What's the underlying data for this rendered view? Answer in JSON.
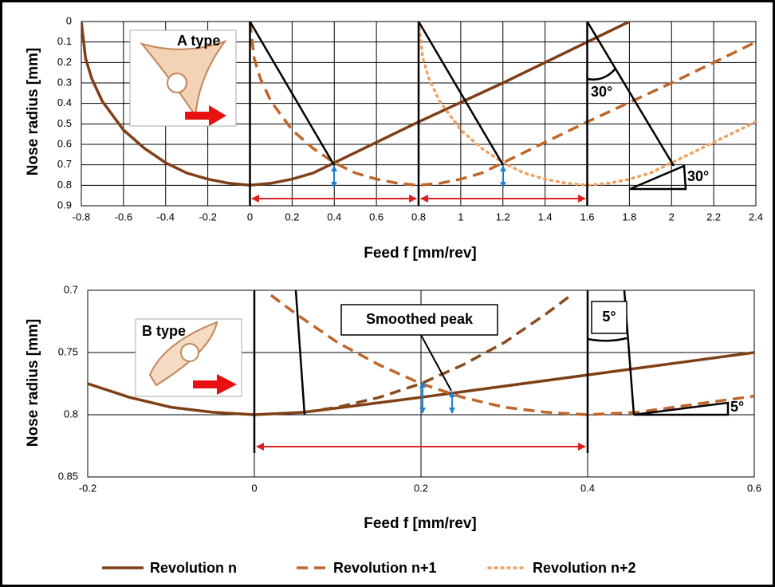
{
  "chart_data": [
    {
      "type": "line",
      "x_label": "Feed f [mm/rev]",
      "y_label": "Nose radius [mm]",
      "xlim": [
        -0.8,
        2.4
      ],
      "ylim": [
        0.9,
        0
      ],
      "xticks": [
        -0.8,
        -0.6,
        -0.4,
        -0.2,
        0,
        0.2,
        0.4,
        0.6,
        0.8,
        1,
        1.2,
        1.4,
        1.6,
        1.8,
        2,
        2.2,
        2.4
      ],
      "yticks": [
        0,
        0.1,
        0.2,
        0.3,
        0.4,
        0.5,
        0.6,
        0.7,
        0.8,
        0.9
      ],
      "grid": true,
      "annotations": [
        "A type",
        "30°",
        "30°"
      ],
      "series": [
        {
          "name": "Revolution n",
          "color": "#7f3f16",
          "style": "solid",
          "x": [
            -0.8,
            -0.78,
            -0.75,
            -0.7,
            -0.6,
            -0.5,
            -0.4,
            -0.3,
            -0.2,
            -0.1,
            0,
            0.1,
            0.2,
            0.3,
            0.4,
            0.8,
            1.2,
            1.6,
            1.8
          ],
          "values": [
            0,
            0.18,
            0.28,
            0.39,
            0.53,
            0.62,
            0.69,
            0.74,
            0.77,
            0.79,
            0.8,
            0.79,
            0.77,
            0.74,
            0.69,
            0.49,
            0.3,
            0.1,
            0
          ]
        },
        {
          "name": "Revolution n+1",
          "color": "#c0652a",
          "style": "dashed",
          "x": [
            0,
            0.02,
            0.05,
            0.1,
            0.2,
            0.3,
            0.4,
            0.5,
            0.6,
            0.7,
            0.8,
            0.9,
            1,
            1.1,
            1.2,
            1.6,
            2,
            2.4
          ],
          "values": [
            0,
            0.18,
            0.28,
            0.39,
            0.53,
            0.62,
            0.69,
            0.74,
            0.77,
            0.79,
            0.8,
            0.79,
            0.77,
            0.74,
            0.69,
            0.49,
            0.3,
            0.1
          ]
        },
        {
          "name": "Revolution n+2",
          "color": "#f0a060",
          "style": "dotted",
          "x": [
            0.8,
            0.82,
            0.85,
            0.9,
            1,
            1.1,
            1.2,
            1.3,
            1.4,
            1.5,
            1.6,
            1.7,
            1.8,
            1.9,
            2,
            2.4
          ],
          "values": [
            0,
            0.18,
            0.28,
            0.39,
            0.53,
            0.62,
            0.69,
            0.74,
            0.77,
            0.79,
            0.8,
            0.79,
            0.77,
            0.74,
            0.69,
            0.49
          ]
        }
      ]
    },
    {
      "type": "line",
      "x_label": "Feed f [mm/rev]",
      "y_label": "Nose radius [mm]",
      "xlim": [
        -0.2,
        0.6
      ],
      "ylim": [
        0.85,
        0.7
      ],
      "xticks": [
        -0.2,
        0,
        0.2,
        0.4,
        0.6
      ],
      "yticks": [
        0.7,
        0.75,
        0.8,
        0.85
      ],
      "grid": true,
      "annotations": [
        "B type",
        "Smoothed peak",
        "5°",
        "5°"
      ],
      "series": [
        {
          "color": "#7f3f16",
          "style": "solid",
          "x": [
            -0.2,
            -0.15,
            -0.1,
            -0.05,
            0,
            0.06,
            0.2,
            0.4,
            0.6
          ],
          "values": [
            0.775,
            0.786,
            0.794,
            0.798,
            0.8,
            0.798,
            0.786,
            0.768,
            0.75
          ]
        },
        {
          "color": "#c0652a",
          "style": "dashed",
          "x": [
            0.02,
            0.05,
            0.1,
            0.15,
            0.2,
            0.25,
            0.3,
            0.35,
            0.4,
            0.46,
            0.6
          ],
          "values": [
            0.704,
            0.719,
            0.742,
            0.76,
            0.775,
            0.786,
            0.794,
            0.798,
            0.8,
            0.798,
            0.785
          ]
        },
        {
          "color": "#8b4a1c",
          "style": "dashed",
          "x": [
            0.06,
            0.1,
            0.15,
            0.2,
            0.25,
            0.3,
            0.35,
            0.38
          ],
          "values": [
            0.798,
            0.794,
            0.786,
            0.775,
            0.76,
            0.742,
            0.719,
            0.704
          ]
        }
      ]
    }
  ]
}
